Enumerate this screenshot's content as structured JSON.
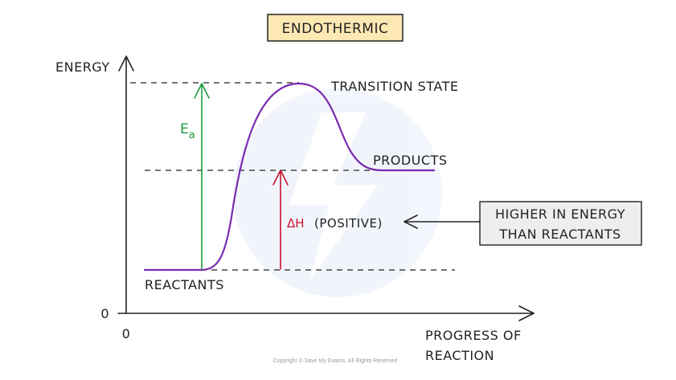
{
  "title": "ENDOTHERMIC",
  "axes": {
    "y_label": "ENERGY",
    "x_label_line1": "PROGRESS OF",
    "x_label_line2": "REACTION",
    "y_origin": "0",
    "x_origin": "0"
  },
  "labels": {
    "transition_state": "TRANSITION STATE",
    "products": "PRODUCTS",
    "reactants": "REACTANTS",
    "activation_energy_main": "E",
    "activation_energy_sub": "a",
    "enthalpy_symbol": "ΔH",
    "enthalpy_sign": "(POSITIVE)"
  },
  "callout": {
    "line1": "HIGHER IN ENERGY",
    "line2": "THAN REACTANTS"
  },
  "copyright": "Copyright © Save My Exams. All Rights Reserved",
  "colors": {
    "title_box_fill": "#fde7b3",
    "curve": "#7a2bb0",
    "activation_arrow": "#1e9a3e",
    "enthalpy_arrow": "#c8102e",
    "callout_fill": "#eeeeee"
  }
}
